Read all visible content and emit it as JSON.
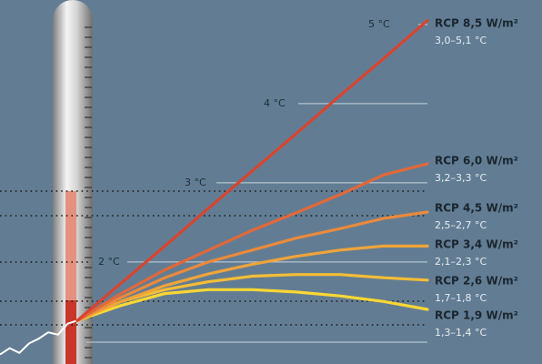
{
  "chart_data": {
    "type": "line",
    "categories": [
      null,
      null,
      null,
      null,
      null,
      null,
      null,
      null,
      null
    ],
    "ylim": [
      0.71,
      5.31
    ],
    "yticks": [
      {
        "value": 2,
        "label": "2 °C"
      },
      {
        "value": 3,
        "label": "3 °C"
      },
      {
        "value": 4,
        "label": "4 °C"
      },
      {
        "value": 5,
        "label": "5 °C"
      }
    ],
    "history": [
      0.83,
      0.91,
      0.85,
      0.97,
      1.03,
      1.11,
      1.08,
      1.22,
      1.26
    ],
    "series": [
      {
        "name": "RCP 8,5 W/m²",
        "range": "3,0–5,1 °C",
        "color": "#d9442f",
        "values": [
          1.26,
          1.73,
          2.2,
          2.68,
          3.15,
          3.62,
          4.1,
          4.57,
          5.05
        ]
      },
      {
        "name": "RCP 6,0 W/m²",
        "range": "3,2–3,3 °C",
        "color": "#e2683a",
        "values": [
          1.26,
          1.6,
          1.9,
          2.15,
          2.4,
          2.62,
          2.85,
          3.1,
          3.24
        ]
      },
      {
        "name": "RCP 4,5 W/m²",
        "range": "2,5–2,7 °C",
        "color": "#eb8a3c",
        "values": [
          1.26,
          1.55,
          1.8,
          2.0,
          2.15,
          2.3,
          2.42,
          2.55,
          2.63
        ]
      },
      {
        "name": "RCP 3,4 W/m²",
        "range": "2,1–2,3 °C",
        "color": "#f0a43a",
        "values": [
          1.26,
          1.5,
          1.7,
          1.85,
          1.97,
          2.07,
          2.15,
          2.2,
          2.2
        ]
      },
      {
        "name": "RCP 2,6 W/m²",
        "range": "1,7–1,8 °C",
        "color": "#f5bd35",
        "values": [
          1.26,
          1.5,
          1.65,
          1.75,
          1.82,
          1.84,
          1.84,
          1.8,
          1.77
        ]
      },
      {
        "name": "RCP 1,9 W/m²",
        "range": "1,3–1,4 °C",
        "color": "#fbd733",
        "values": [
          1.26,
          1.45,
          1.6,
          1.65,
          1.65,
          1.62,
          1.57,
          1.5,
          1.4
        ]
      }
    ]
  }
}
